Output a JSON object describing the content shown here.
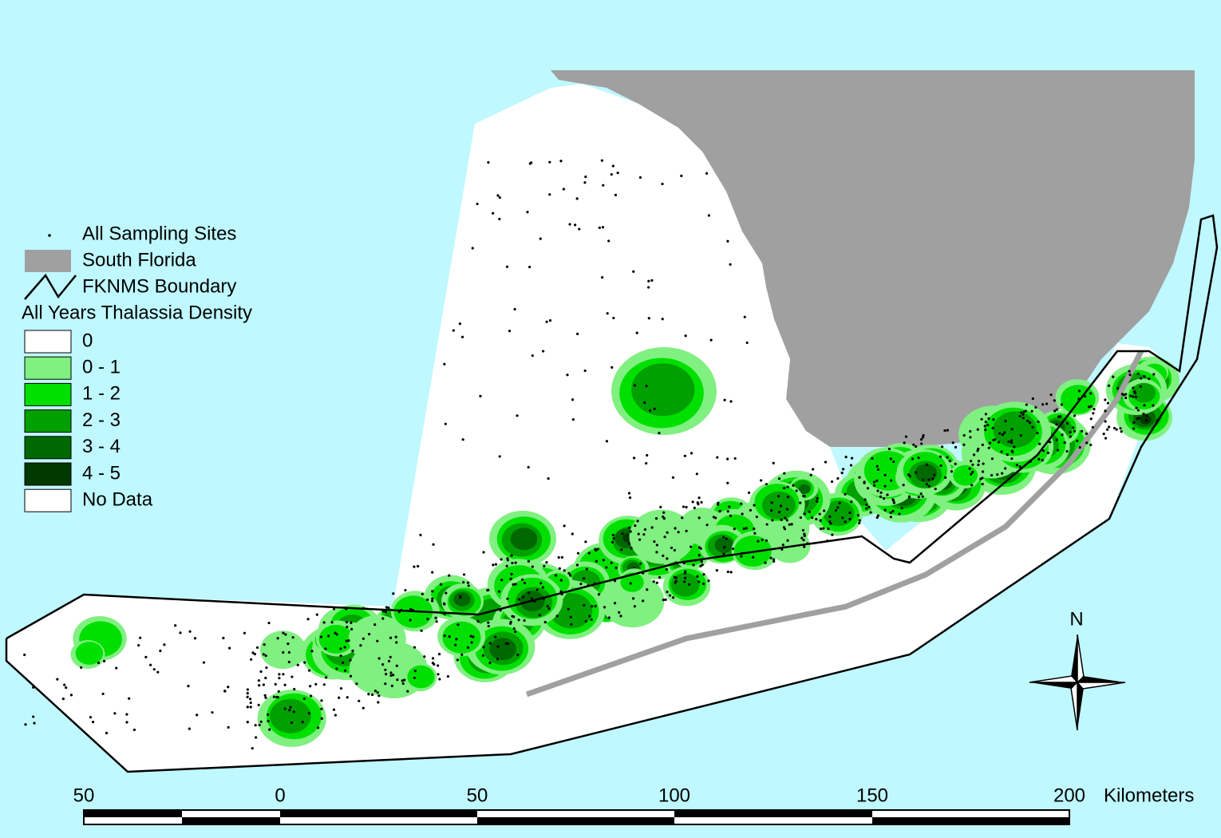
{
  "legend": {
    "items": [
      "All Sampling Sites",
      "South Florida",
      "FKNMS Boundary"
    ],
    "density_title": "All Years Thalassia Density",
    "classes": [
      "0",
      "0 - 1",
      "1 - 2",
      "2 - 3",
      "3 - 4",
      "4 - 5",
      "No Data"
    ]
  },
  "scale_bar": {
    "labels": [
      "50",
      "0",
      "50",
      "100",
      "150",
      "200"
    ],
    "unit": "Kilometers"
  },
  "north_arrow": {
    "label": "N"
  }
}
